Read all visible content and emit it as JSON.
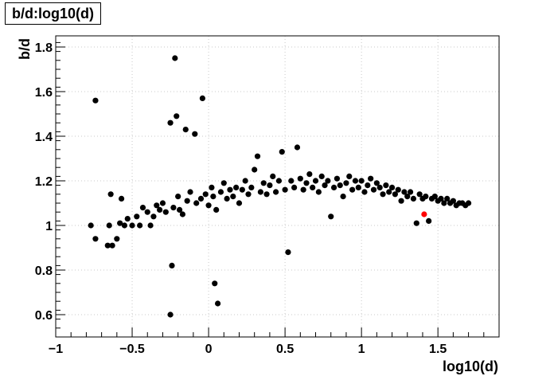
{
  "chart_data": {
    "type": "scatter",
    "title": "b/d:log10(d)",
    "xlabel": "log10(d)",
    "ylabel": "b/d",
    "xlim": [
      -1,
      1.9
    ],
    "ylim": [
      0.5,
      1.85
    ],
    "grid": true,
    "x_ticks": [
      -1,
      -0.5,
      0,
      0.5,
      1,
      1.5
    ],
    "x_tick_labels": [
      "−1",
      "−0.5",
      "0",
      "0.5",
      "1",
      "1.5"
    ],
    "y_ticks": [
      0.6,
      0.8,
      1,
      1.2,
      1.4,
      1.6,
      1.8
    ],
    "y_tick_labels": [
      "0.6",
      "0.8",
      "1",
      "1.2",
      "1.4",
      "1.6",
      "1.8"
    ],
    "colors": {
      "points": "#000000",
      "highlight": "#ff0000",
      "grid": "#c8c8c8"
    },
    "series": [
      {
        "marker_color": "#000000",
        "points": [
          [
            -0.77,
            1.0
          ],
          [
            -0.74,
            0.94
          ],
          [
            -0.74,
            1.56
          ],
          [
            -0.66,
            0.91
          ],
          [
            -0.65,
            1.0
          ],
          [
            -0.64,
            1.14
          ],
          [
            -0.63,
            0.91
          ],
          [
            -0.6,
            0.94
          ],
          [
            -0.58,
            1.01
          ],
          [
            -0.57,
            1.12
          ],
          [
            -0.55,
            1.0
          ],
          [
            -0.53,
            1.03
          ],
          [
            -0.5,
            1.0
          ],
          [
            -0.47,
            1.04
          ],
          [
            -0.45,
            1.0
          ],
          [
            -0.43,
            1.08
          ],
          [
            -0.4,
            1.06
          ],
          [
            -0.38,
            1.0
          ],
          [
            -0.36,
            1.04
          ],
          [
            -0.34,
            1.09
          ],
          [
            -0.32,
            1.07
          ],
          [
            -0.3,
            1.1
          ],
          [
            -0.28,
            1.06
          ],
          [
            -0.25,
            0.6
          ],
          [
            -0.25,
            1.46
          ],
          [
            -0.24,
            0.82
          ],
          [
            -0.23,
            1.08
          ],
          [
            -0.22,
            1.75
          ],
          [
            -0.21,
            1.49
          ],
          [
            -0.2,
            1.13
          ],
          [
            -0.19,
            1.07
          ],
          [
            -0.17,
            1.05
          ],
          [
            -0.15,
            1.43
          ],
          [
            -0.14,
            1.11
          ],
          [
            -0.12,
            1.15
          ],
          [
            -0.09,
            1.41
          ],
          [
            -0.08,
            1.1
          ],
          [
            -0.05,
            1.12
          ],
          [
            -0.04,
            1.57
          ],
          [
            -0.02,
            1.14
          ],
          [
            0.0,
            1.09
          ],
          [
            0.02,
            1.17
          ],
          [
            0.03,
            1.13
          ],
          [
            0.04,
            0.74
          ],
          [
            0.05,
            1.07
          ],
          [
            0.06,
            0.65
          ],
          [
            0.08,
            1.15
          ],
          [
            0.1,
            1.19
          ],
          [
            0.12,
            1.12
          ],
          [
            0.14,
            1.16
          ],
          [
            0.16,
            1.13
          ],
          [
            0.18,
            1.17
          ],
          [
            0.2,
            1.1
          ],
          [
            0.22,
            1.16
          ],
          [
            0.24,
            1.2
          ],
          [
            0.26,
            1.14
          ],
          [
            0.28,
            1.17
          ],
          [
            0.3,
            1.25
          ],
          [
            0.32,
            1.31
          ],
          [
            0.34,
            1.15
          ],
          [
            0.36,
            1.19
          ],
          [
            0.38,
            1.14
          ],
          [
            0.4,
            1.18
          ],
          [
            0.42,
            1.22
          ],
          [
            0.44,
            1.15
          ],
          [
            0.46,
            1.2
          ],
          [
            0.48,
            1.33
          ],
          [
            0.5,
            1.16
          ],
          [
            0.52,
            0.88
          ],
          [
            0.54,
            1.2
          ],
          [
            0.56,
            1.17
          ],
          [
            0.58,
            1.35
          ],
          [
            0.6,
            1.21
          ],
          [
            0.62,
            1.16
          ],
          [
            0.64,
            1.19
          ],
          [
            0.66,
            1.23
          ],
          [
            0.68,
            1.17
          ],
          [
            0.7,
            1.2
          ],
          [
            0.72,
            1.15
          ],
          [
            0.74,
            1.22
          ],
          [
            0.76,
            1.18
          ],
          [
            0.78,
            1.2
          ],
          [
            0.8,
            1.04
          ],
          [
            0.82,
            1.17
          ],
          [
            0.84,
            1.21
          ],
          [
            0.86,
            1.18
          ],
          [
            0.88,
            1.13
          ],
          [
            0.9,
            1.19
          ],
          [
            0.92,
            1.22
          ],
          [
            0.94,
            1.16
          ],
          [
            0.96,
            1.2
          ],
          [
            0.98,
            1.17
          ],
          [
            1.0,
            1.2
          ],
          [
            1.02,
            1.15
          ],
          [
            1.04,
            1.18
          ],
          [
            1.06,
            1.21
          ],
          [
            1.08,
            1.16
          ],
          [
            1.1,
            1.19
          ],
          [
            1.12,
            1.17
          ],
          [
            1.14,
            1.14
          ],
          [
            1.16,
            1.18
          ],
          [
            1.18,
            1.15
          ],
          [
            1.2,
            1.17
          ],
          [
            1.22,
            1.14
          ],
          [
            1.24,
            1.16
          ],
          [
            1.26,
            1.11
          ],
          [
            1.28,
            1.15
          ],
          [
            1.3,
            1.13
          ],
          [
            1.32,
            1.15
          ],
          [
            1.34,
            1.12
          ],
          [
            1.36,
            1.01
          ],
          [
            1.38,
            1.14
          ],
          [
            1.4,
            1.12
          ],
          [
            1.42,
            1.13
          ],
          [
            1.44,
            1.02
          ],
          [
            1.46,
            1.12
          ],
          [
            1.48,
            1.13
          ],
          [
            1.5,
            1.11
          ],
          [
            1.52,
            1.12
          ],
          [
            1.54,
            1.1
          ],
          [
            1.56,
            1.12
          ],
          [
            1.58,
            1.1
          ],
          [
            1.6,
            1.11
          ],
          [
            1.62,
            1.09
          ],
          [
            1.64,
            1.1
          ],
          [
            1.66,
            1.1
          ],
          [
            1.68,
            1.09
          ],
          [
            1.7,
            1.1
          ]
        ]
      },
      {
        "marker_color": "#ff0000",
        "points": [
          [
            1.41,
            1.05
          ]
        ]
      }
    ]
  }
}
